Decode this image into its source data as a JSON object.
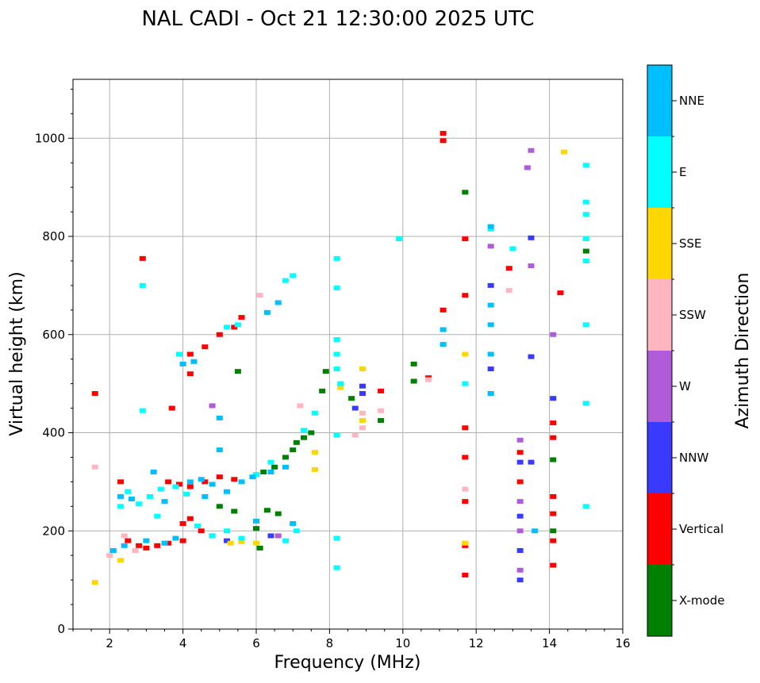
{
  "chart_data": {
    "type": "scatter",
    "title": "NAL CADI - Oct 21 12:30:00 2025 UTC",
    "xlabel": "Frequency (MHz)",
    "ylabel": "Virtual height (km)",
    "xlim": [
      1,
      16
    ],
    "ylim": [
      0,
      1120
    ],
    "xticks": [
      2,
      4,
      6,
      8,
      10,
      12,
      14,
      16
    ],
    "yticks": [
      0,
      200,
      400,
      600,
      800,
      1000
    ],
    "grid": true,
    "colorbar": {
      "label": "Azimuth Direction",
      "categories": [
        {
          "name": "X-mode",
          "color": "#008000"
        },
        {
          "name": "Vertical",
          "color": "#ff0000"
        },
        {
          "name": "NNW",
          "color": "#3a3aff"
        },
        {
          "name": "W",
          "color": "#b05cd8"
        },
        {
          "name": "SSW",
          "color": "#ffb6c1"
        },
        {
          "name": "SSE",
          "color": "#ffd700"
        },
        {
          "name": "E",
          "color": "#00ffff"
        },
        {
          "name": "NNE",
          "color": "#00bfff"
        }
      ]
    },
    "series": [
      {
        "name": "Vertical",
        "points": [
          [
            1.6,
            480
          ],
          [
            2.3,
            300
          ],
          [
            2.5,
            180
          ],
          [
            2.8,
            170
          ],
          [
            3.0,
            165
          ],
          [
            3.3,
            170
          ],
          [
            3.6,
            175
          ],
          [
            4.0,
            180
          ],
          [
            3.6,
            300
          ],
          [
            3.9,
            295
          ],
          [
            4.2,
            290
          ],
          [
            4.6,
            300
          ],
          [
            5.0,
            310
          ],
          [
            5.4,
            305
          ],
          [
            4.0,
            215
          ],
          [
            4.2,
            225
          ],
          [
            4.5,
            200
          ],
          [
            3.7,
            450
          ],
          [
            4.2,
            520
          ],
          [
            4.2,
            560
          ],
          [
            4.6,
            575
          ],
          [
            5.0,
            600
          ],
          [
            5.4,
            615
          ],
          [
            5.6,
            635
          ],
          [
            2.9,
            755
          ],
          [
            11.1,
            1010
          ],
          [
            11.1,
            995
          ],
          [
            11.1,
            650
          ],
          [
            11.7,
            795
          ],
          [
            11.7,
            680
          ],
          [
            11.7,
            410
          ],
          [
            11.7,
            350
          ],
          [
            11.7,
            260
          ],
          [
            11.7,
            170
          ],
          [
            11.7,
            110
          ],
          [
            13.2,
            300
          ],
          [
            13.2,
            360
          ],
          [
            14.1,
            420
          ],
          [
            14.1,
            390
          ],
          [
            14.1,
            270
          ],
          [
            14.1,
            180
          ],
          [
            14.1,
            130
          ],
          [
            14.1,
            235
          ],
          [
            12.9,
            735
          ],
          [
            14.3,
            685
          ],
          [
            9.4,
            485
          ],
          [
            10.7,
            512
          ]
        ]
      },
      {
        "name": "X-mode",
        "points": [
          [
            5.5,
            525
          ],
          [
            6.3,
            242
          ],
          [
            6.6,
            235
          ],
          [
            6.8,
            350
          ],
          [
            7.0,
            365
          ],
          [
            7.1,
            380
          ],
          [
            7.5,
            400
          ],
          [
            7.8,
            485
          ],
          [
            7.9,
            525
          ],
          [
            8.6,
            470
          ],
          [
            9.4,
            425
          ],
          [
            10.3,
            540
          ],
          [
            10.3,
            505
          ],
          [
            11.7,
            890
          ],
          [
            14.1,
            345
          ],
          [
            14.1,
            200
          ],
          [
            15.0,
            770
          ],
          [
            6.0,
            205
          ],
          [
            6.1,
            165
          ],
          [
            5.4,
            240
          ],
          [
            5.0,
            250
          ],
          [
            6.5,
            330
          ],
          [
            6.2,
            320
          ],
          [
            7.3,
            390
          ]
        ]
      },
      {
        "name": "NNW",
        "points": [
          [
            8.7,
            450
          ],
          [
            8.9,
            480
          ],
          [
            8.9,
            495
          ],
          [
            13.2,
            340
          ],
          [
            13.2,
            230
          ],
          [
            13.2,
            160
          ],
          [
            13.2,
            100
          ],
          [
            13.5,
            340
          ],
          [
            13.5,
            555
          ],
          [
            13.5,
            797
          ],
          [
            14.1,
            470
          ],
          [
            12.4,
            700
          ],
          [
            12.4,
            530
          ],
          [
            4.8,
            190
          ],
          [
            5.2,
            180
          ],
          [
            6.4,
            190
          ]
        ]
      },
      {
        "name": "W",
        "points": [
          [
            13.2,
            385
          ],
          [
            13.5,
            975
          ],
          [
            13.4,
            940
          ],
          [
            13.5,
            740
          ],
          [
            12.4,
            780
          ],
          [
            13.2,
            260
          ],
          [
            13.2,
            200
          ],
          [
            13.2,
            120
          ],
          [
            14.1,
            600
          ],
          [
            6.6,
            190
          ],
          [
            4.8,
            455
          ]
        ]
      },
      {
        "name": "SSW",
        "points": [
          [
            8.7,
            395
          ],
          [
            8.9,
            410
          ],
          [
            8.9,
            440
          ],
          [
            9.4,
            445
          ],
          [
            10.7,
            508
          ],
          [
            12.9,
            690
          ],
          [
            11.7,
            285
          ],
          [
            2.0,
            150
          ],
          [
            2.4,
            190
          ],
          [
            2.7,
            160
          ],
          [
            1.6,
            330
          ],
          [
            6.1,
            680
          ],
          [
            7.2,
            455
          ]
        ]
      },
      {
        "name": "SSE",
        "points": [
          [
            8.9,
            530
          ],
          [
            8.9,
            425
          ],
          [
            7.6,
            325
          ],
          [
            7.6,
            360
          ],
          [
            11.7,
            560
          ],
          [
            11.7,
            175
          ],
          [
            14.4,
            972
          ],
          [
            5.3,
            175
          ],
          [
            5.6,
            178
          ],
          [
            6.0,
            175
          ],
          [
            2.3,
            140
          ],
          [
            1.6,
            95
          ],
          [
            8.3,
            492
          ]
        ]
      },
      {
        "name": "E",
        "points": [
          [
            2.3,
            250
          ],
          [
            2.5,
            280
          ],
          [
            2.8,
            255
          ],
          [
            3.1,
            270
          ],
          [
            3.4,
            285
          ],
          [
            3.8,
            290
          ],
          [
            4.1,
            275
          ],
          [
            4.4,
            210
          ],
          [
            4.8,
            190
          ],
          [
            5.2,
            200
          ],
          [
            5.6,
            185
          ],
          [
            6.0,
            315
          ],
          [
            6.4,
            340
          ],
          [
            6.8,
            180
          ],
          [
            7.1,
            200
          ],
          [
            7.3,
            405
          ],
          [
            7.6,
            440
          ],
          [
            3.3,
            230
          ],
          [
            3.9,
            560
          ],
          [
            2.9,
            445
          ],
          [
            2.9,
            700
          ],
          [
            6.8,
            710
          ],
          [
            7.0,
            720
          ],
          [
            5.2,
            615
          ],
          [
            5.5,
            620
          ],
          [
            8.2,
            755
          ],
          [
            8.2,
            695
          ],
          [
            8.2,
            590
          ],
          [
            8.2,
            560
          ],
          [
            8.3,
            500
          ],
          [
            8.2,
            395
          ],
          [
            8.2,
            185
          ],
          [
            8.2,
            125
          ],
          [
            8.2,
            530
          ],
          [
            9.9,
            795
          ],
          [
            13.0,
            775
          ],
          [
            15.0,
            945
          ],
          [
            15.0,
            870
          ],
          [
            15.0,
            845
          ],
          [
            15.0,
            795
          ],
          [
            15.0,
            750
          ],
          [
            15.0,
            620
          ],
          [
            15.0,
            460
          ],
          [
            15.0,
            250
          ],
          [
            11.7,
            500
          ],
          [
            12.4,
            815
          ]
        ]
      },
      {
        "name": "NNE",
        "points": [
          [
            2.1,
            160
          ],
          [
            2.4,
            170
          ],
          [
            3.0,
            180
          ],
          [
            3.5,
            175
          ],
          [
            3.8,
            185
          ],
          [
            4.2,
            300
          ],
          [
            4.5,
            305
          ],
          [
            4.8,
            295
          ],
          [
            5.2,
            280
          ],
          [
            5.6,
            300
          ],
          [
            5.9,
            310
          ],
          [
            6.4,
            320
          ],
          [
            6.8,
            330
          ],
          [
            2.3,
            270
          ],
          [
            2.6,
            265
          ],
          [
            3.2,
            320
          ],
          [
            4.0,
            540
          ],
          [
            4.3,
            545
          ],
          [
            6.3,
            645
          ],
          [
            6.6,
            665
          ],
          [
            5.0,
            430
          ],
          [
            12.4,
            480
          ],
          [
            12.4,
            560
          ],
          [
            12.4,
            620
          ],
          [
            12.4,
            660
          ],
          [
            12.4,
            820
          ],
          [
            11.1,
            610
          ],
          [
            11.1,
            580
          ],
          [
            13.6,
            200
          ],
          [
            5.0,
            365
          ],
          [
            6.0,
            220
          ],
          [
            4.6,
            270
          ],
          [
            3.5,
            260
          ],
          [
            7.0,
            215
          ]
        ]
      }
    ]
  }
}
